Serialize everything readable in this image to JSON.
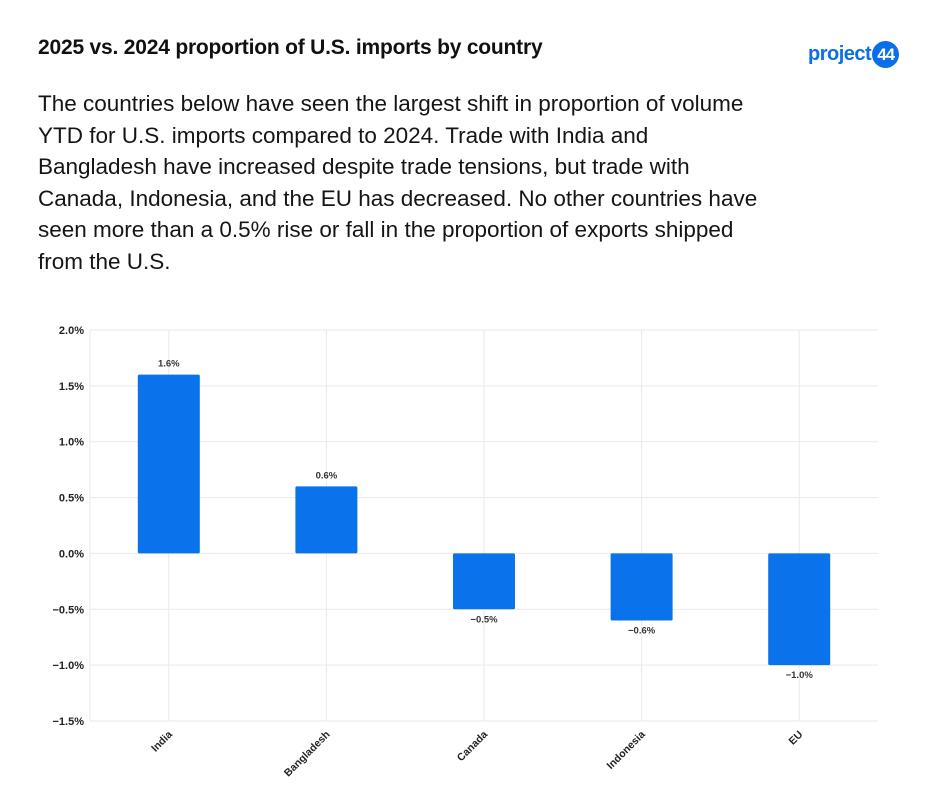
{
  "header": {
    "title": "2025 vs. 2024 proportion of U.S. imports by country",
    "logo_text": "project",
    "logo_badge": "44",
    "description": "The countries below have seen the largest shift in proportion of volume YTD for U.S. imports compared to 2024. Trade with India and Bangladesh have increased despite trade tensions, but trade with Canada, Indonesia, and the EU has decreased. No other countries have seen more than a 0.5% rise or fall in the proportion of exports shipped from the U.S."
  },
  "colors": {
    "bar": "#0a73eb",
    "grid": "#e9e9ee",
    "brand": "#0a6fe8"
  },
  "chart_data": {
    "type": "bar",
    "categories": [
      "India",
      "Bangladesh",
      "Canada",
      "Indonesia",
      "EU"
    ],
    "values": [
      1.6,
      0.6,
      -0.5,
      -0.6,
      -1.0
    ],
    "data_labels": [
      "1.6%",
      "0.6%",
      "−0.5%",
      "−0.6%",
      "−1.0%"
    ],
    "ylim": [
      -1.5,
      2.0
    ],
    "yticks": [
      2.0,
      1.5,
      1.0,
      0.5,
      0.0,
      -0.5,
      -1.0,
      -1.5
    ],
    "ytick_labels": [
      "2.0%",
      "1.5%",
      "1.0%",
      "0.5%",
      "0.0%",
      "−0.5%",
      "−1.0%",
      "−1.5%"
    ],
    "grid": true,
    "title": "",
    "xlabel": "",
    "ylabel": ""
  }
}
